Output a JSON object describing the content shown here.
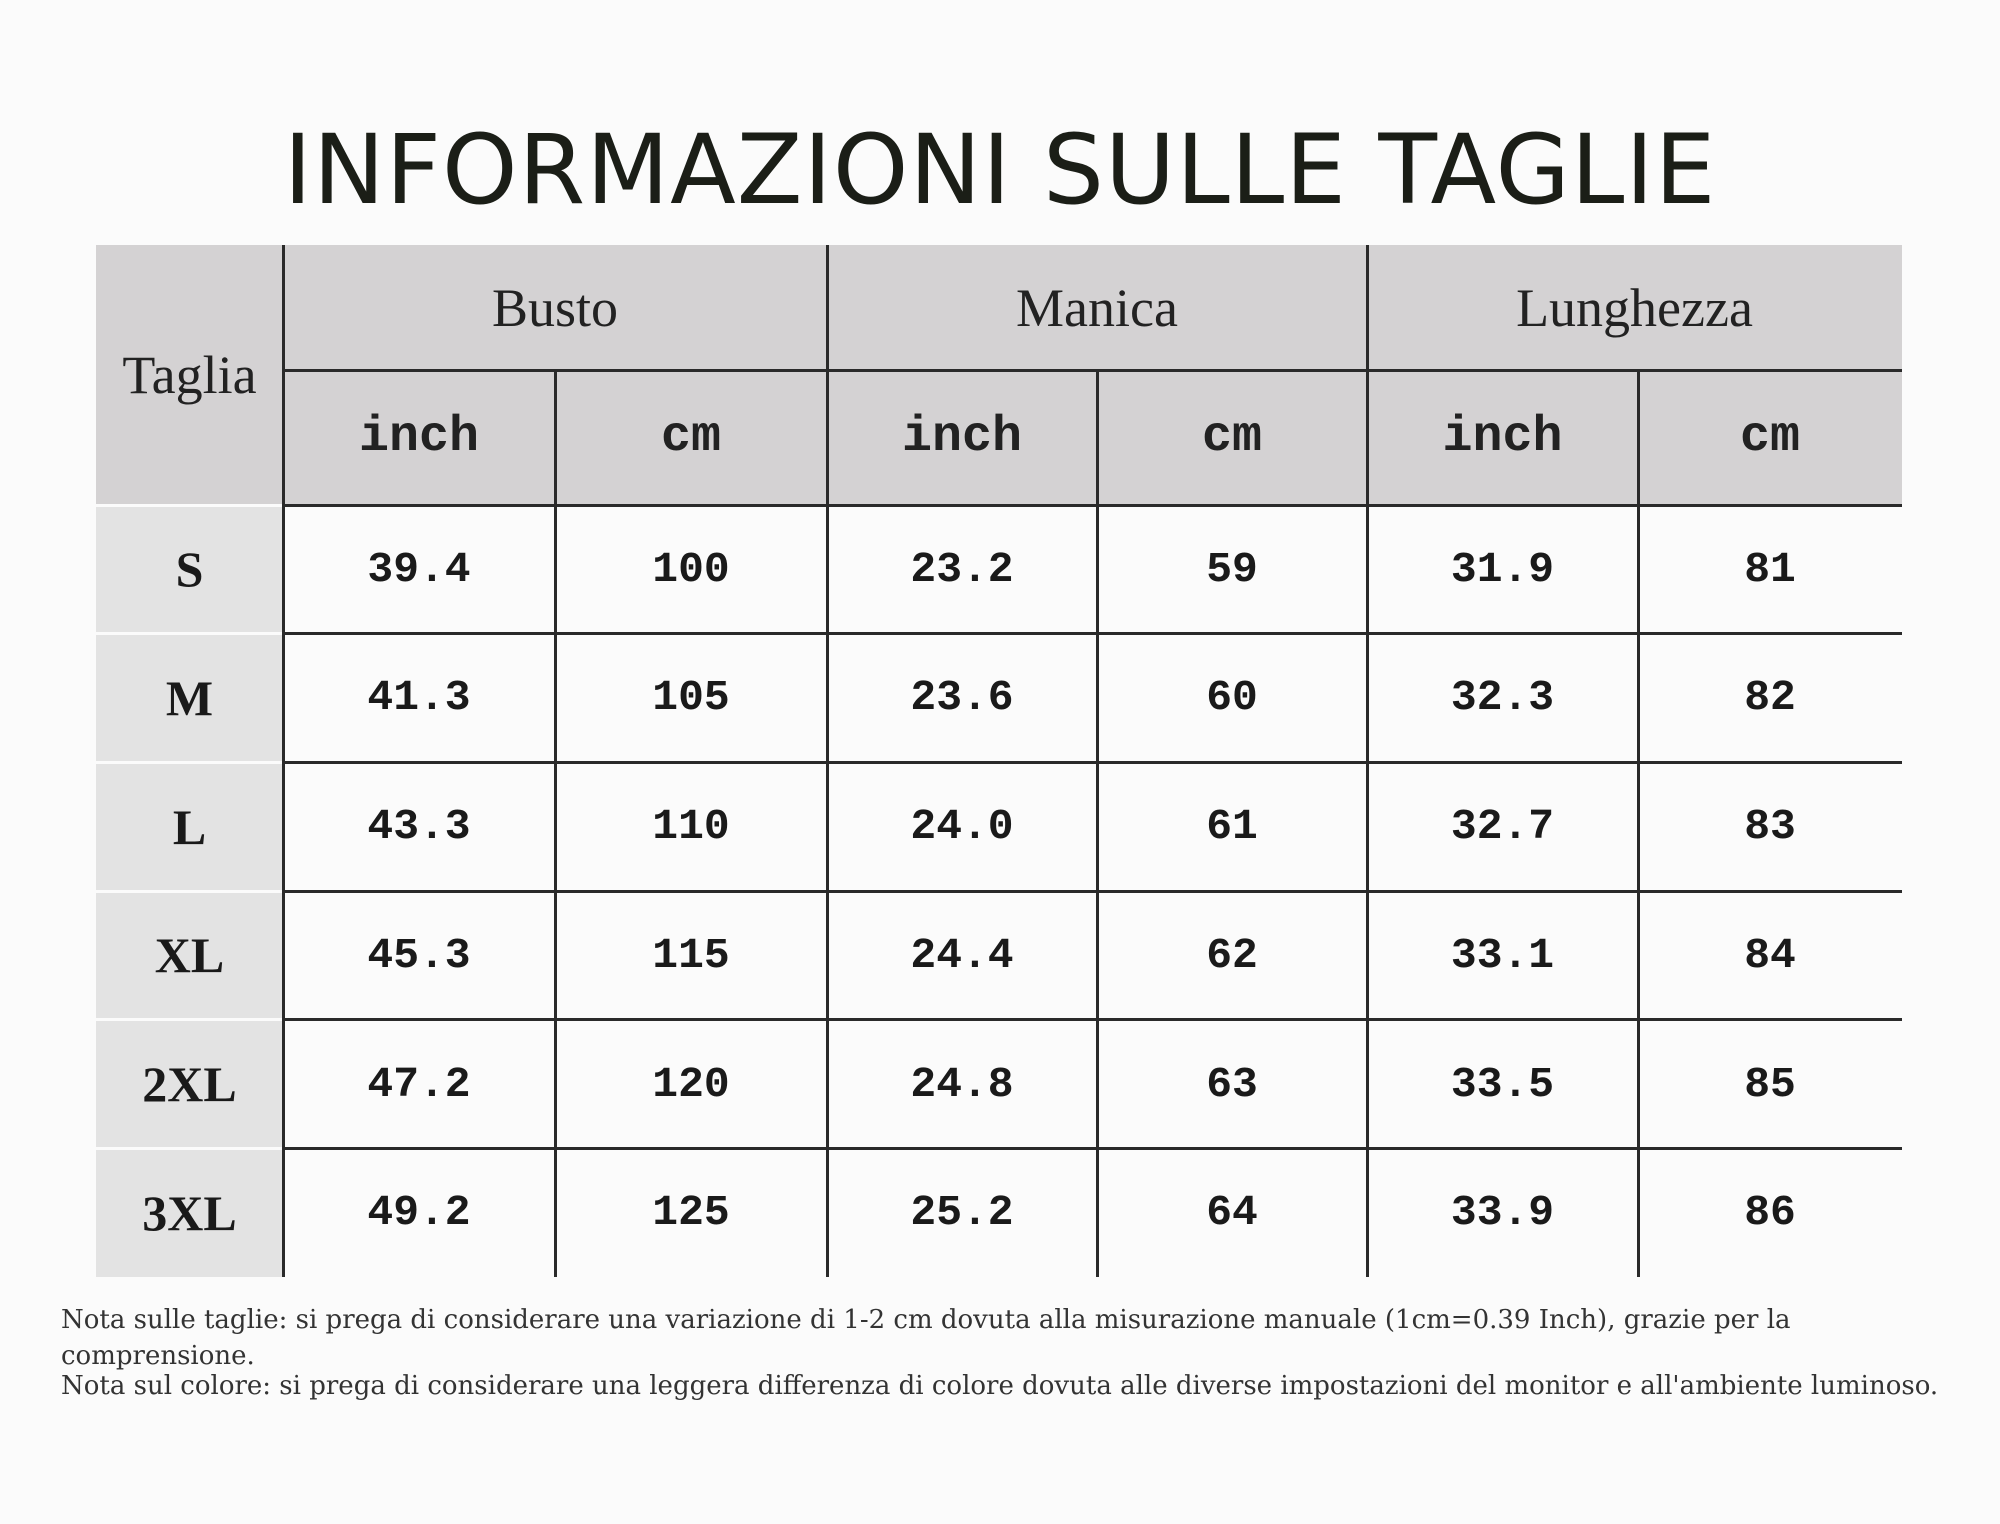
{
  "header": {
    "title": "INFORMAZIONI SULLE TAGLIE"
  },
  "table": {
    "size_header": "Taglia",
    "group_headers": [
      "Busto",
      "Manica",
      "Lunghezza"
    ],
    "unit_headers": [
      "inch",
      "cm",
      "inch",
      "cm",
      "inch",
      "cm"
    ],
    "rows": [
      [
        "S",
        "39.4",
        "100",
        "23.2",
        "59",
        "31.9",
        "81"
      ],
      [
        "M",
        "41.3",
        "105",
        "23.6",
        "60",
        "32.3",
        "82"
      ],
      [
        "L",
        "43.3",
        "110",
        "24.0",
        "61",
        "32.7",
        "83"
      ],
      [
        "XL",
        "45.3",
        "115",
        "24.4",
        "62",
        "33.1",
        "84"
      ],
      [
        "2XL",
        "47.2",
        "120",
        "24.8",
        "63",
        "33.5",
        "85"
      ],
      [
        "3XL",
        "49.2",
        "125",
        "25.2",
        "64",
        "33.9",
        "86"
      ]
    ]
  },
  "notes": [
    "Nota sulle taglie: si prega di considerare una variazione di 1-2 cm dovuta alla misurazione manuale (1cm=0.39 Inch), grazie per la comprensione.",
    "Nota sul colore: si prega di considerare una leggera differenza di colore dovuta alle diverse impostazioni del monitor e all'ambiente luminoso."
  ]
}
